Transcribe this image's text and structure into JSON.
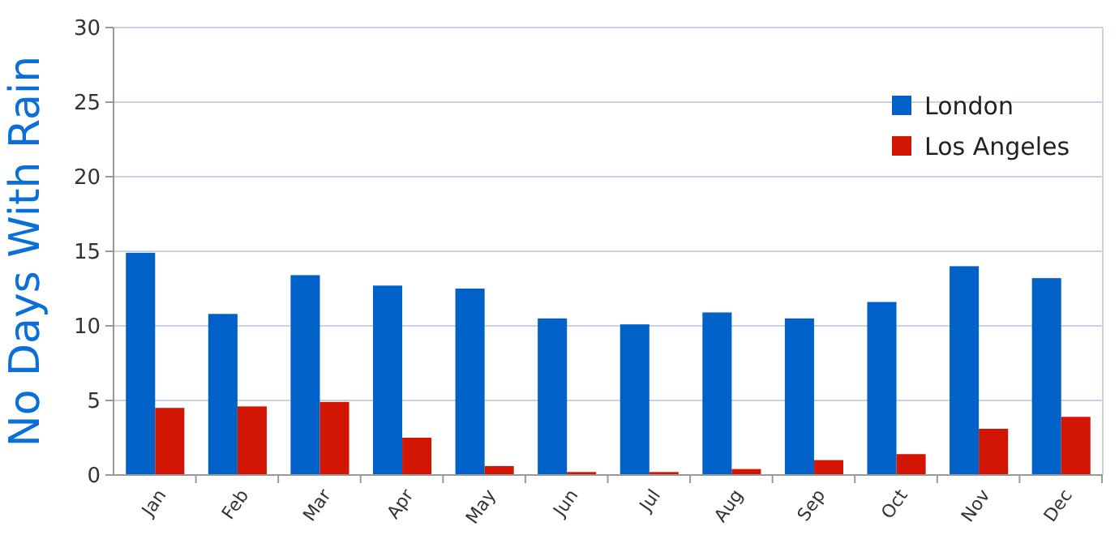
{
  "chart_data": {
    "type": "bar",
    "ylabel": "No Days With Rain",
    "categories": [
      "Jan",
      "Feb",
      "Mar",
      "Apr",
      "May",
      "Jun",
      "Jul",
      "Aug",
      "Sep",
      "Oct",
      "Nov",
      "Dec"
    ],
    "series": [
      {
        "name": "London",
        "color": "#0061c9",
        "values": [
          14.9,
          10.8,
          13.4,
          12.7,
          12.5,
          10.5,
          10.1,
          10.9,
          10.5,
          11.6,
          14.0,
          13.2
        ]
      },
      {
        "name": "Los Angeles",
        "color": "#d21603",
        "values": [
          4.5,
          4.6,
          4.9,
          2.5,
          0.6,
          0.2,
          0.2,
          0.4,
          1.0,
          1.4,
          3.1,
          3.9
        ]
      }
    ],
    "ylim": [
      0,
      30
    ],
    "yticks": [
      0,
      5,
      10,
      15,
      20,
      25,
      30
    ],
    "grid": "y",
    "legend": "top right"
  }
}
